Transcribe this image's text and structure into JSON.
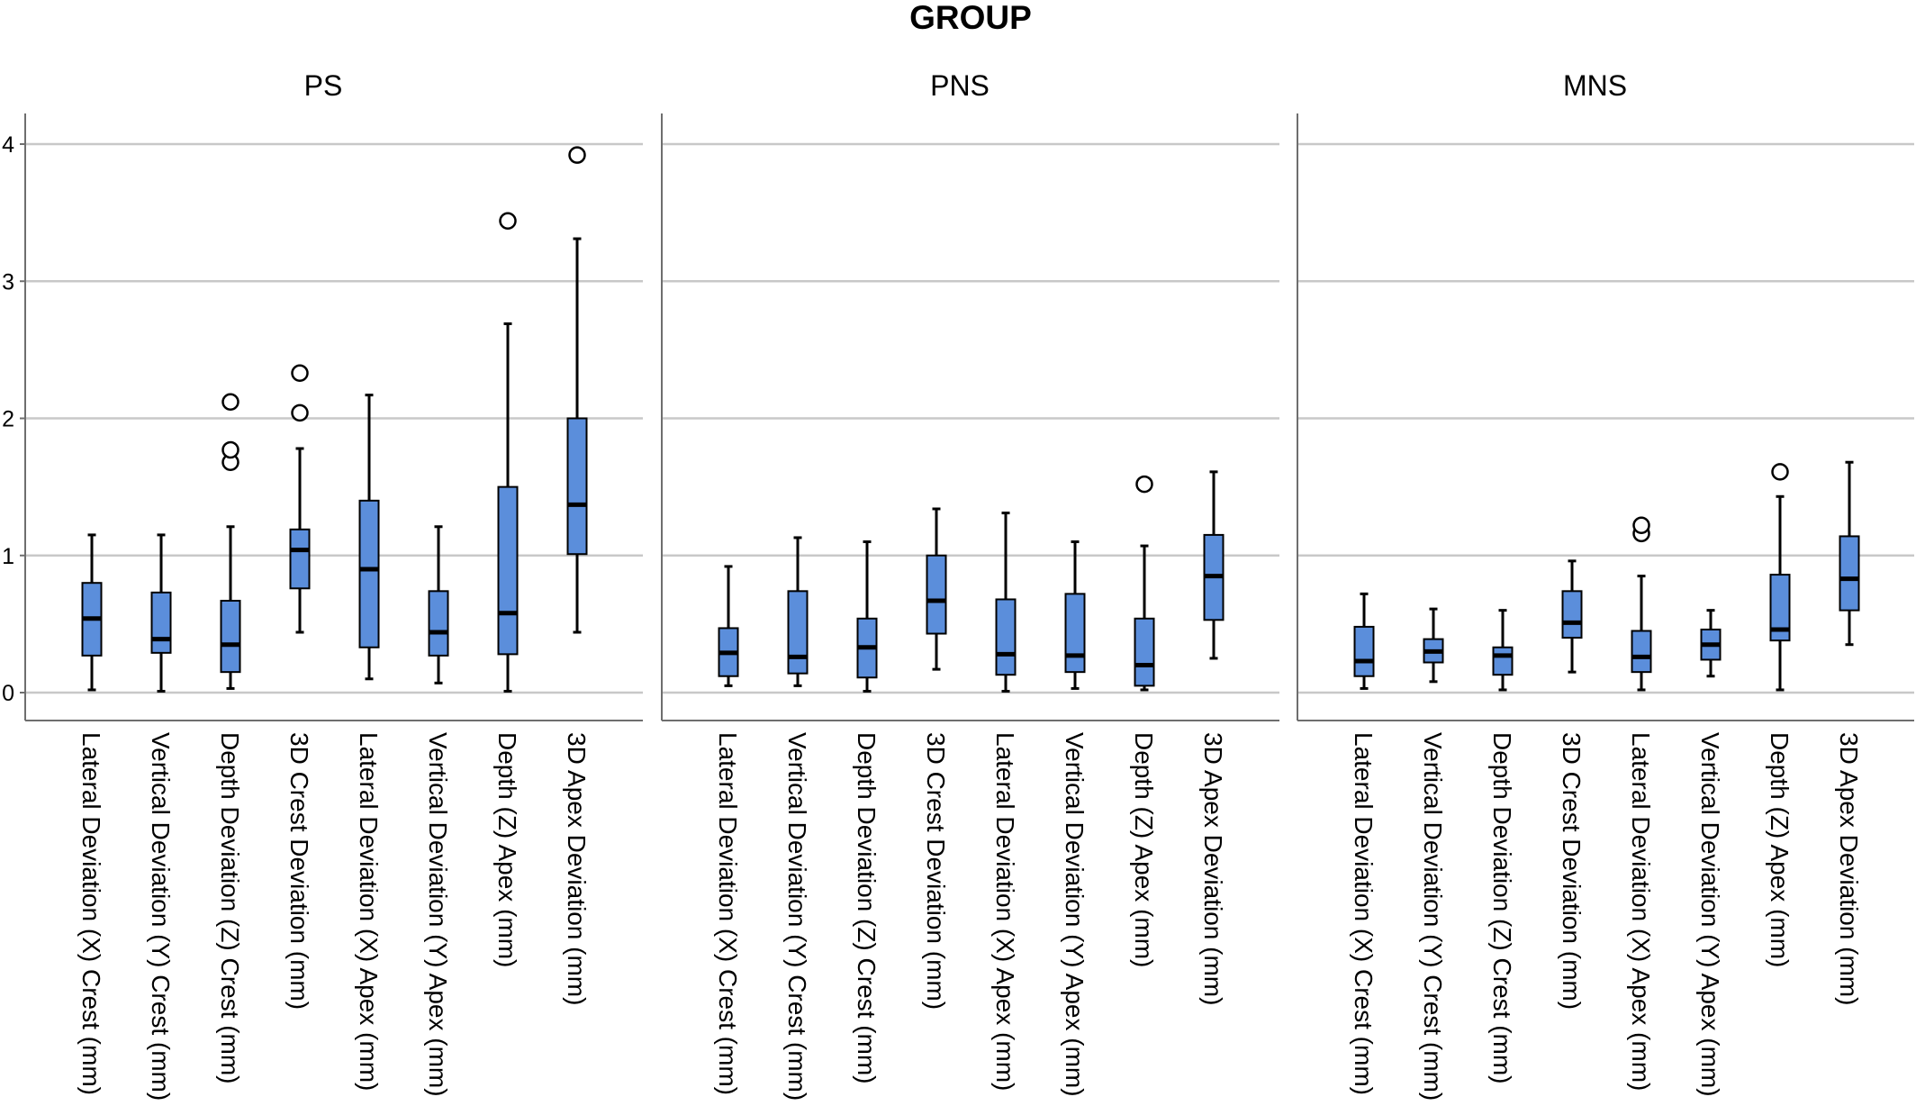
{
  "chart_data": {
    "type": "boxplot",
    "title": "GROUP",
    "xlabel": "",
    "ylabel": "",
    "ylim": [
      0,
      4
    ],
    "yticks": [
      0,
      1,
      2,
      3,
      4
    ],
    "grid": true,
    "box_color": "#5B8EDB",
    "box_edge_color": "#000000",
    "grid_color": "#C8C8C8",
    "categories": [
      "Lateral Deviation (X) Crest (mm)",
      "Vertical Deviation (Y) Crest (mm)",
      "Depth Deviation (Z) Crest (mm)",
      "3D Crest Deviation (mm)",
      "Lateral Deviation (X) Apex (mm)",
      "Vertical Deviation (Y) Apex (mm)",
      "Depth (Z) Apex (mm)",
      "3D Apex Deviation (mm)"
    ],
    "panels": [
      {
        "name": "PS",
        "boxes": [
          {
            "whisker_low": 0.02,
            "q1": 0.27,
            "median": 0.54,
            "q3": 0.8,
            "whisker_high": 1.15,
            "outliers": []
          },
          {
            "whisker_low": 0.01,
            "q1": 0.29,
            "median": 0.39,
            "q3": 0.73,
            "whisker_high": 1.15,
            "outliers": []
          },
          {
            "whisker_low": 0.03,
            "q1": 0.15,
            "median": 0.35,
            "q3": 0.67,
            "whisker_high": 1.21,
            "outliers": [
              1.68,
              1.77,
              2.12
            ]
          },
          {
            "whisker_low": 0.44,
            "q1": 0.76,
            "median": 1.04,
            "q3": 1.19,
            "whisker_high": 1.78,
            "outliers": [
              2.04,
              2.33
            ]
          },
          {
            "whisker_low": 0.1,
            "q1": 0.33,
            "median": 0.9,
            "q3": 1.4,
            "whisker_high": 2.17,
            "outliers": []
          },
          {
            "whisker_low": 0.07,
            "q1": 0.27,
            "median": 0.44,
            "q3": 0.74,
            "whisker_high": 1.21,
            "outliers": []
          },
          {
            "whisker_low": 0.01,
            "q1": 0.28,
            "median": 0.58,
            "q3": 1.5,
            "whisker_high": 2.69,
            "outliers": [
              3.44
            ]
          },
          {
            "whisker_low": 0.44,
            "q1": 1.01,
            "median": 1.37,
            "q3": 2.0,
            "whisker_high": 3.31,
            "outliers": [
              3.92
            ]
          }
        ]
      },
      {
        "name": "PNS",
        "boxes": [
          {
            "whisker_low": 0.05,
            "q1": 0.12,
            "median": 0.29,
            "q3": 0.47,
            "whisker_high": 0.92,
            "outliers": []
          },
          {
            "whisker_low": 0.05,
            "q1": 0.14,
            "median": 0.26,
            "q3": 0.74,
            "whisker_high": 1.13,
            "outliers": []
          },
          {
            "whisker_low": 0.01,
            "q1": 0.11,
            "median": 0.33,
            "q3": 0.54,
            "whisker_high": 1.1,
            "outliers": []
          },
          {
            "whisker_low": 0.17,
            "q1": 0.43,
            "median": 0.67,
            "q3": 1.0,
            "whisker_high": 1.34,
            "outliers": []
          },
          {
            "whisker_low": 0.01,
            "q1": 0.13,
            "median": 0.28,
            "q3": 0.68,
            "whisker_high": 1.31,
            "outliers": []
          },
          {
            "whisker_low": 0.03,
            "q1": 0.15,
            "median": 0.27,
            "q3": 0.72,
            "whisker_high": 1.1,
            "outliers": []
          },
          {
            "whisker_low": 0.02,
            "q1": 0.05,
            "median": 0.2,
            "q3": 0.54,
            "whisker_high": 1.07,
            "outliers": [
              1.52
            ]
          },
          {
            "whisker_low": 0.25,
            "q1": 0.53,
            "median": 0.85,
            "q3": 1.15,
            "whisker_high": 1.61,
            "outliers": []
          }
        ]
      },
      {
        "name": "MNS",
        "boxes": [
          {
            "whisker_low": 0.03,
            "q1": 0.12,
            "median": 0.23,
            "q3": 0.48,
            "whisker_high": 0.72,
            "outliers": []
          },
          {
            "whisker_low": 0.08,
            "q1": 0.22,
            "median": 0.3,
            "q3": 0.39,
            "whisker_high": 0.61,
            "outliers": []
          },
          {
            "whisker_low": 0.02,
            "q1": 0.13,
            "median": 0.27,
            "q3": 0.33,
            "whisker_high": 0.6,
            "outliers": []
          },
          {
            "whisker_low": 0.15,
            "q1": 0.4,
            "median": 0.51,
            "q3": 0.74,
            "whisker_high": 0.96,
            "outliers": []
          },
          {
            "whisker_low": 0.02,
            "q1": 0.15,
            "median": 0.26,
            "q3": 0.45,
            "whisker_high": 0.85,
            "outliers": [
              1.16,
              1.22
            ]
          },
          {
            "whisker_low": 0.12,
            "q1": 0.24,
            "median": 0.35,
            "q3": 0.46,
            "whisker_high": 0.6,
            "outliers": []
          },
          {
            "whisker_low": 0.02,
            "q1": 0.38,
            "median": 0.46,
            "q3": 0.86,
            "whisker_high": 1.43,
            "outliers": [
              1.61
            ]
          },
          {
            "whisker_low": 0.35,
            "q1": 0.6,
            "median": 0.83,
            "q3": 1.14,
            "whisker_high": 1.68,
            "outliers": []
          }
        ]
      }
    ]
  }
}
